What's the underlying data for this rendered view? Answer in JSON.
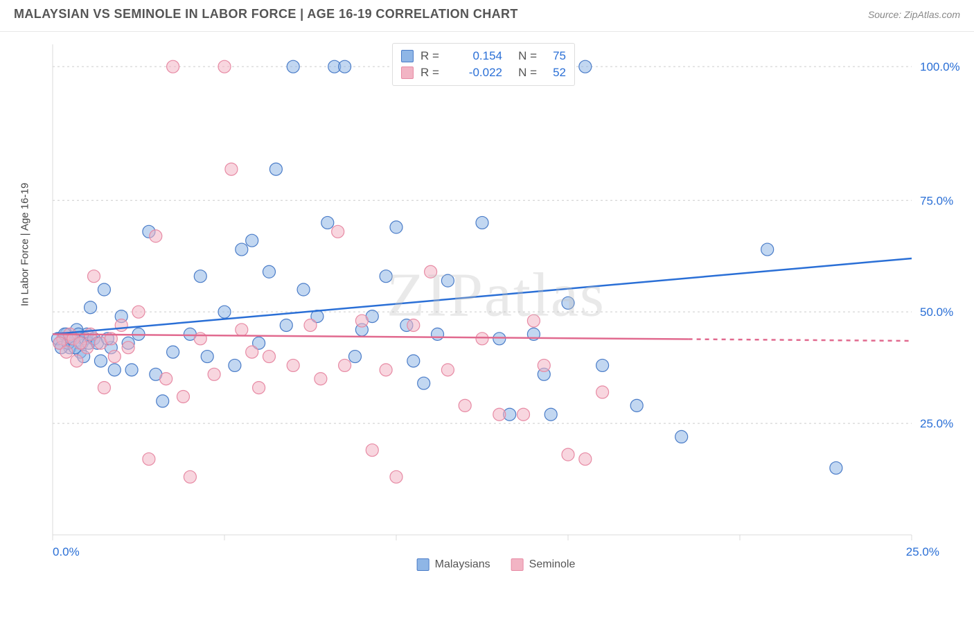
{
  "header": {
    "title": "MALAYSIAN VS SEMINOLE IN LABOR FORCE | AGE 16-19 CORRELATION CHART",
    "source": "Source: ZipAtlas.com"
  },
  "y_axis_label": "In Labor Force | Age 16-19",
  "watermark": "ZIPatlas",
  "chart": {
    "type": "scatter",
    "plot_bg": "#ffffff",
    "grid_color": "#cccccc",
    "grid_dash": "3,4",
    "border_color": "#dbdbdb",
    "xlim": [
      0,
      25
    ],
    "ylim": [
      0,
      110
    ],
    "x_ticks": [
      0,
      5,
      10,
      15,
      20,
      25
    ],
    "x_tick_labels": {
      "0": "0.0%",
      "25": "25.0%"
    },
    "y_gridlines": [
      25,
      50,
      75,
      105
    ],
    "y_tick_labels": {
      "25": "25.0%",
      "50": "50.0%",
      "75": "75.0%",
      "105": "100.0%"
    },
    "series": [
      {
        "name": "Malaysians",
        "fill": "#8fb6e6",
        "fill_opacity": 0.55,
        "stroke": "#4a7cc8",
        "marker_r": 9,
        "trend": {
          "y0": 45,
          "y1": 62,
          "color": "#2a6fd6",
          "width": 2.5,
          "dash_at": 25
        },
        "stats": {
          "r": "0.154",
          "n": "75"
        },
        "points": [
          [
            0.2,
            43
          ],
          [
            0.3,
            44
          ],
          [
            0.4,
            45
          ],
          [
            0.5,
            42
          ],
          [
            0.6,
            44
          ],
          [
            0.7,
            46
          ],
          [
            0.8,
            41
          ],
          [
            0.9,
            40
          ],
          [
            1.0,
            45
          ],
          [
            1.1,
            51
          ],
          [
            1.4,
            39
          ],
          [
            1.5,
            55
          ],
          [
            1.7,
            42
          ],
          [
            2.0,
            49
          ],
          [
            2.3,
            37
          ],
          [
            2.5,
            45
          ],
          [
            2.8,
            68
          ],
          [
            3.0,
            36
          ],
          [
            3.2,
            30
          ],
          [
            3.5,
            41
          ],
          [
            4.0,
            45
          ],
          [
            4.3,
            58
          ],
          [
            4.5,
            40
          ],
          [
            5.0,
            50
          ],
          [
            5.3,
            38
          ],
          [
            5.5,
            64
          ],
          [
            5.8,
            66
          ],
          [
            6.0,
            43
          ],
          [
            6.3,
            59
          ],
          [
            6.5,
            82
          ],
          [
            6.8,
            47
          ],
          [
            7.0,
            105
          ],
          [
            7.3,
            55
          ],
          [
            7.7,
            49
          ],
          [
            8.0,
            70
          ],
          [
            8.2,
            105
          ],
          [
            8.5,
            105
          ],
          [
            8.8,
            40
          ],
          [
            9.0,
            46
          ],
          [
            9.3,
            49
          ],
          [
            9.7,
            58
          ],
          [
            10.0,
            69
          ],
          [
            10.3,
            47
          ],
          [
            10.5,
            39
          ],
          [
            10.8,
            34
          ],
          [
            11.2,
            45
          ],
          [
            11.5,
            57
          ],
          [
            12.5,
            70
          ],
          [
            13.0,
            44
          ],
          [
            13.3,
            27
          ],
          [
            14.0,
            45
          ],
          [
            14.3,
            36
          ],
          [
            14.5,
            27
          ],
          [
            15.0,
            52
          ],
          [
            15.5,
            105
          ],
          [
            16.0,
            38
          ],
          [
            17.0,
            29
          ],
          [
            18.3,
            22
          ],
          [
            20.8,
            64
          ],
          [
            22.8,
            15
          ],
          [
            0.15,
            44
          ],
          [
            0.25,
            42
          ],
          [
            0.35,
            45
          ],
          [
            0.45,
            43
          ],
          [
            0.55,
            44
          ],
          [
            0.65,
            42
          ],
          [
            0.75,
            45
          ],
          [
            0.85,
            43
          ],
          [
            0.95,
            44
          ],
          [
            1.05,
            43
          ],
          [
            1.2,
            44
          ],
          [
            1.3,
            43
          ],
          [
            1.6,
            44
          ],
          [
            1.8,
            37
          ],
          [
            2.2,
            43
          ]
        ]
      },
      {
        "name": "Seminole",
        "fill": "#f2b4c4",
        "fill_opacity": 0.55,
        "stroke": "#e78aa4",
        "marker_r": 9,
        "trend": {
          "y0": 45,
          "y1": 43.5,
          "color": "#e16a8f",
          "width": 2.5,
          "solid_until_x": 18.5,
          "dash_to": 25
        },
        "stats": {
          "r": "-0.022",
          "n": "52"
        },
        "points": [
          [
            0.3,
            44
          ],
          [
            0.5,
            45
          ],
          [
            0.7,
            39
          ],
          [
            1.0,
            42
          ],
          [
            1.2,
            58
          ],
          [
            1.5,
            33
          ],
          [
            1.8,
            40
          ],
          [
            2.0,
            47
          ],
          [
            2.2,
            42
          ],
          [
            2.5,
            50
          ],
          [
            2.8,
            17
          ],
          [
            3.0,
            67
          ],
          [
            3.3,
            35
          ],
          [
            3.5,
            105
          ],
          [
            3.8,
            31
          ],
          [
            4.0,
            13
          ],
          [
            4.3,
            44
          ],
          [
            4.7,
            36
          ],
          [
            5.0,
            105
          ],
          [
            5.2,
            82
          ],
          [
            5.5,
            46
          ],
          [
            5.8,
            41
          ],
          [
            6.0,
            33
          ],
          [
            6.3,
            40
          ],
          [
            7.0,
            38
          ],
          [
            7.5,
            47
          ],
          [
            7.8,
            35
          ],
          [
            8.3,
            68
          ],
          [
            8.5,
            38
          ],
          [
            9.0,
            48
          ],
          [
            9.3,
            19
          ],
          [
            9.7,
            37
          ],
          [
            10.0,
            13
          ],
          [
            10.5,
            47
          ],
          [
            11.0,
            59
          ],
          [
            11.5,
            37
          ],
          [
            12.0,
            29
          ],
          [
            12.5,
            44
          ],
          [
            13.0,
            27
          ],
          [
            13.7,
            27
          ],
          [
            14.0,
            48
          ],
          [
            14.3,
            38
          ],
          [
            15.0,
            18
          ],
          [
            15.5,
            17
          ],
          [
            16.0,
            32
          ],
          [
            0.2,
            43
          ],
          [
            0.4,
            41
          ],
          [
            0.6,
            44
          ],
          [
            0.8,
            43
          ],
          [
            1.1,
            45
          ],
          [
            1.4,
            43
          ],
          [
            1.7,
            44
          ]
        ]
      }
    ]
  },
  "bottom_legend": [
    {
      "label": "Malaysians",
      "fill": "#8fb6e6",
      "stroke": "#4a7cc8"
    },
    {
      "label": "Seminole",
      "fill": "#f2b4c4",
      "stroke": "#e78aa4"
    }
  ]
}
